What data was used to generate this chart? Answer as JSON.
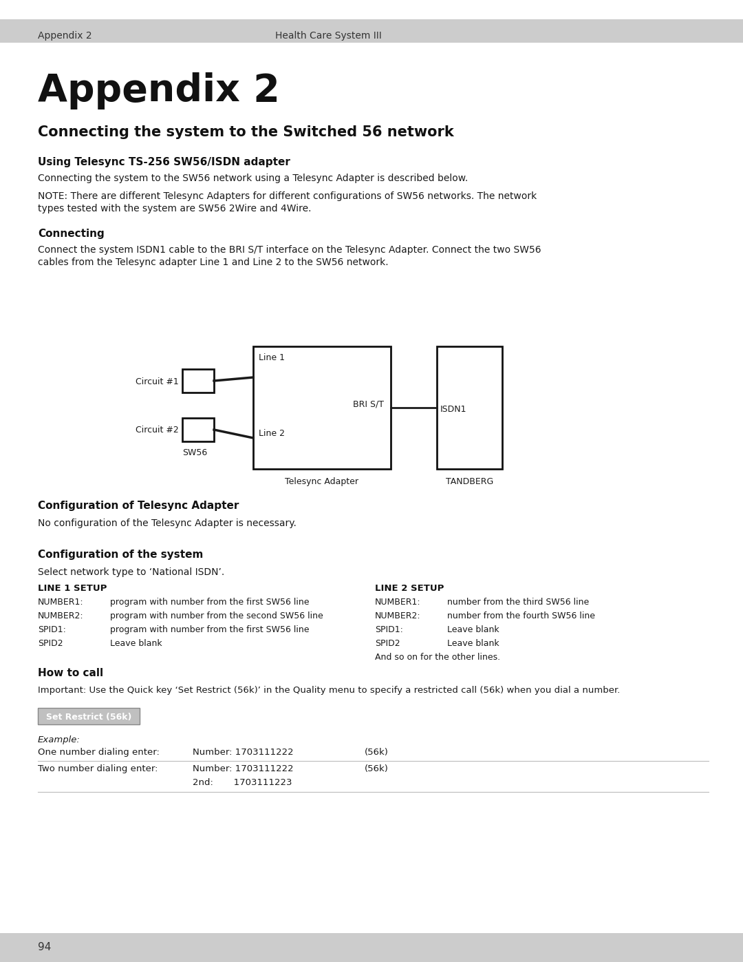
{
  "bg_color": "#ffffff",
  "header_bg": "#cccccc",
  "header_left": "Appendix 2",
  "header_right": "Health Care System III",
  "title": "Appendix 2",
  "section1": "Connecting the system to the Switched 56 network",
  "subsection1": "Using Telesync TS-256 SW56/ISDN adapter",
  "para1": "Connecting the system to the SW56 network using a Telesync Adapter is described below.",
  "para2a": "NOTE: There are different Telesync Adapters for different configurations of SW56 networks. The network",
  "para2b": "types tested with the system are SW56 2Wire and 4Wire.",
  "subsection2": "Connecting",
  "para3a": "Connect the system ISDN1 cable to the BRI S/T interface on the Telesync Adapter. Connect the two SW56",
  "para3b": "cables from the Telesync adapter Line 1 and Line 2 to the SW56 network.",
  "subsection3": "Configuration of Telesync Adapter",
  "para4": "No configuration of the Telesync Adapter is necessary.",
  "subsection4": "Configuration of the system",
  "para5": "Select network type to ‘National ISDN’.",
  "line1_setup_title": "LINE 1 SETUP",
  "line1_rows": [
    [
      "NUMBER1:",
      "program with number from the first SW56 line"
    ],
    [
      "NUMBER2:",
      "program with number from the second SW56 line"
    ],
    [
      "SPID1:",
      "program with number from the first SW56 line"
    ],
    [
      "SPID2",
      "Leave blank"
    ]
  ],
  "line2_setup_title": "LINE 2 SETUP",
  "line2_rows": [
    [
      "NUMBER1:",
      "number from the third SW56 line"
    ],
    [
      "NUMBER2:",
      "number from the fourth SW56 line"
    ],
    [
      "SPID1:",
      "Leave blank"
    ],
    [
      "SPID2",
      "Leave blank"
    ]
  ],
  "line2_footer": "And so on for the other lines.",
  "subsection5": "How to call",
  "para6": "Important: Use the Quick key ‘Set Restrict (56k)’ in the Quality menu to specify a restricted call (56k) when you dial a number.",
  "button_label": "Set Restrict (56k)",
  "example_label": "Example:",
  "footer_text": "94",
  "footer_bg": "#cccccc"
}
